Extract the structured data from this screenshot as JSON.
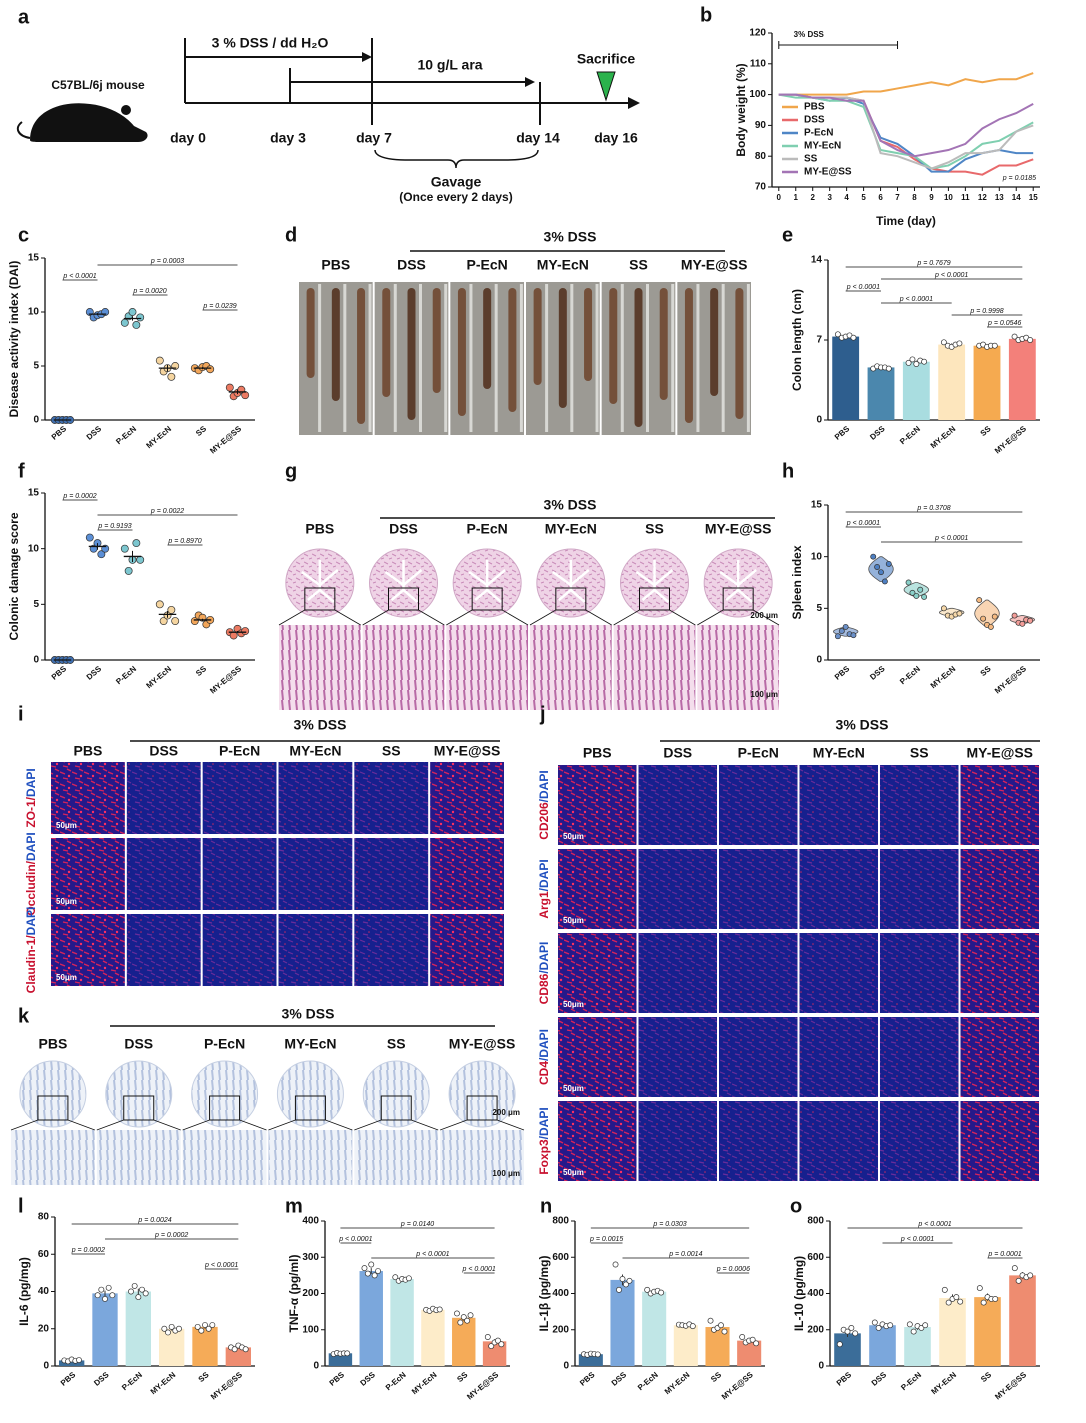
{
  "panel_a": {
    "label": "a",
    "mouse": "C57BL/6j mouse",
    "treatment_1": "3 % DSS / dd H₂O",
    "treatment_2": "10 g/L ara",
    "end": "Sacrifice",
    "days": [
      "day 0",
      "day 3",
      "day 7",
      "day 14",
      "day 16"
    ],
    "gavage": "Gavage",
    "gavage_note": "(Once every 2 days)"
  },
  "chart_data": [
    {
      "panel": "b",
      "type": "line",
      "x": [
        0,
        1,
        2,
        3,
        4,
        5,
        6,
        7,
        8,
        9,
        10,
        11,
        12,
        13,
        14,
        15
      ],
      "xlim": [
        -0.4,
        15.4
      ],
      "xticks": [
        0,
        1,
        2,
        3,
        4,
        5,
        6,
        7,
        8,
        9,
        10,
        11,
        12,
        13,
        14,
        15
      ],
      "ylim": [
        70,
        120
      ],
      "yticks": [
        70,
        80,
        90,
        100,
        110,
        120
      ],
      "xlabel": "Time (day)",
      "ylabel": "Body weight (%)",
      "legend": "lower left",
      "annotations": [
        {
          "text": "3% DSS",
          "x": [
            0,
            7
          ]
        }
      ],
      "stat": "p = 0.0185",
      "series": [
        {
          "name": "PBS",
          "color": "#f0a64b",
          "values": [
            100,
            100,
            100,
            100,
            100,
            101,
            101,
            102,
            103,
            104,
            103,
            105,
            104,
            105,
            105,
            107
          ]
        },
        {
          "name": "DSS",
          "color": "#e8696b",
          "values": [
            100,
            100,
            99,
            99,
            99,
            98,
            85,
            83,
            79,
            76,
            75,
            75,
            74,
            77,
            77,
            79
          ]
        },
        {
          "name": "P-EcN",
          "color": "#4f86c6",
          "values": [
            100,
            100,
            99,
            98,
            99,
            97,
            86,
            84,
            80,
            75,
            75,
            79,
            81,
            82,
            81,
            81
          ]
        },
        {
          "name": "MY-EcN",
          "color": "#7fcfb0",
          "values": [
            100,
            99,
            99,
            98,
            98,
            96,
            82,
            81,
            80,
            76,
            77,
            80,
            84,
            85,
            88,
            91
          ]
        },
        {
          "name": "SS",
          "color": "#bbbbbb",
          "values": [
            100,
            100,
            99,
            99,
            99,
            98,
            81,
            80,
            78,
            76,
            78,
            81,
            81,
            82,
            88,
            90
          ]
        },
        {
          "name": "MY-E@SS",
          "color": "#a374b5",
          "values": [
            100,
            100,
            99,
            99,
            98,
            98,
            85,
            82,
            80,
            81,
            82,
            84,
            89,
            92,
            94,
            97
          ]
        }
      ]
    },
    {
      "panel": "c",
      "type": "dot",
      "ylabel": "Disease activity index (DAI)",
      "categories": [
        "PBS",
        "DSS",
        "P-EcN",
        "MY-EcN",
        "SS",
        "MY-E@SS"
      ],
      "colors": [
        "#3f6fb0",
        "#5b8fd6",
        "#7cc6cf",
        "#f5d5a0",
        "#f2a65a",
        "#ec7a62"
      ],
      "ylim": [
        0,
        15
      ],
      "yticks": [
        0,
        5,
        10,
        15
      ],
      "values": [
        0,
        9.8,
        9.4,
        4.8,
        4.8,
        2.6
      ],
      "errors": [
        0,
        0.1,
        0.2,
        0.3,
        0.1,
        0.2
      ],
      "points": [
        [
          0,
          0,
          0,
          0,
          0
        ],
        [
          10,
          9.5,
          9.7,
          9.8,
          10
        ],
        [
          9,
          9.6,
          10,
          8.8,
          9.5
        ],
        [
          5.5,
          4.5,
          4.8,
          4,
          5
        ],
        [
          4.8,
          4.6,
          4.9,
          5,
          4.7
        ],
        [
          3,
          2.2,
          2.5,
          2.8,
          2.3
        ]
      ],
      "pvalues": [
        {
          "text": "p = 0.0003",
          "between": [
            "DSS",
            "MY-E@SS"
          ]
        },
        {
          "text": "p < 0.0001",
          "between": [
            "PBS",
            "DSS"
          ]
        },
        {
          "text": "p = 0.0020",
          "between": [
            "P-EcN",
            "MY-EcN"
          ]
        },
        {
          "text": "p = 0.0239",
          "between": [
            "SS",
            "MY-E@SS"
          ]
        }
      ]
    },
    {
      "panel": "e",
      "type": "bar",
      "ylabel": "Colon length (cm)",
      "categories": [
        "PBS",
        "DSS",
        "P-EcN",
        "MY-EcN",
        "SS",
        "MY-E@SS"
      ],
      "colors": [
        "#2e5e8e",
        "#4b87ad",
        "#a9dde0",
        "#fde6bd",
        "#f5aa50",
        "#f3807a"
      ],
      "ylim": [
        0,
        14
      ],
      "yticks": [
        0,
        7,
        14
      ],
      "values": [
        7.3,
        4.6,
        5.1,
        6.6,
        6.5,
        7.1
      ],
      "errors": [
        0.1,
        0.05,
        0.1,
        0.1,
        0.05,
        0.1
      ],
      "points": [
        [
          7.5,
          7.2,
          7.3,
          7.4,
          7.2
        ],
        [
          4.5,
          4.7,
          4.6,
          4.6,
          4.5
        ],
        [
          5,
          5.3,
          4.9,
          5.2,
          5.1
        ],
        [
          6.8,
          6.5,
          6.4,
          6.6,
          6.7
        ],
        [
          6.5,
          6.6,
          6.4,
          6.5,
          6.5
        ],
        [
          7.3,
          7,
          7.1,
          7.2,
          7
        ]
      ],
      "pvalues": [
        {
          "text": "p = 0.7679",
          "between": [
            "PBS",
            "MY-E@SS"
          ]
        },
        {
          "text": "p < 0.0001",
          "between": [
            "DSS",
            "MY-E@SS"
          ]
        },
        {
          "text": "p < 0.0001",
          "between": [
            "PBS",
            "DSS"
          ]
        },
        {
          "text": "p < 0.0001",
          "between": [
            "DSS",
            "MY-EcN"
          ]
        },
        {
          "text": "p = 0.9998",
          "between": [
            "MY-EcN",
            "MY-E@SS"
          ]
        },
        {
          "text": "p = 0.0546",
          "between": [
            "SS",
            "MY-E@SS"
          ]
        }
      ]
    },
    {
      "panel": "f",
      "type": "dot",
      "ylabel": "Colonic damage score",
      "categories": [
        "PBS",
        "DSS",
        "P-EcN",
        "MY-EcN",
        "SS",
        "MY-E@SS"
      ],
      "colors": [
        "#3f6fb0",
        "#5b8fd6",
        "#7cc6cf",
        "#f5d5a0",
        "#f2a65a",
        "#ec7a62"
      ],
      "ylim": [
        0,
        15
      ],
      "yticks": [
        0,
        5,
        10,
        15
      ],
      "values": [
        0,
        10.2,
        9.3,
        4.1,
        3.6,
        2.5
      ],
      "errors": [
        0,
        0.3,
        0.5,
        0.3,
        0.1,
        0.1
      ],
      "points": [
        [
          0,
          0,
          0,
          0,
          0
        ],
        [
          11,
          10,
          10.5,
          9.5,
          10
        ],
        [
          10,
          8,
          9,
          10.5,
          9
        ],
        [
          5,
          3.5,
          4,
          4.5,
          3.5
        ],
        [
          3.5,
          4,
          3.8,
          3.2,
          3.6
        ],
        [
          2.5,
          2.2,
          2.8,
          2.4,
          2.6
        ]
      ],
      "pvalues": [
        {
          "text": "p = 0.0002",
          "between": [
            "PBS",
            "DSS"
          ]
        },
        {
          "text": "p = 0.0022",
          "between": [
            "DSS",
            "MY-E@SS"
          ]
        },
        {
          "text": "p = 0.9193",
          "between": [
            "DSS",
            "P-EcN"
          ]
        },
        {
          "text": "p = 0.8970",
          "between": [
            "MY-EcN",
            "SS"
          ]
        }
      ]
    },
    {
      "panel": "h",
      "type": "violin",
      "ylabel": "Spleen index",
      "categories": [
        "PBS",
        "DSS",
        "P-EcN",
        "MY-EcN",
        "SS",
        "MY-E@SS"
      ],
      "colors": [
        "#6b90c9",
        "#4e7fc2",
        "#8ad0c9",
        "#f7d9aa",
        "#f5b980",
        "#f39d98"
      ],
      "ylim": [
        0,
        15
      ],
      "yticks": [
        0,
        5,
        10,
        15
      ],
      "points": [
        [
          2.3,
          2.8,
          3.2,
          2.5,
          2.4
        ],
        [
          10,
          9,
          8.5,
          7.6,
          9.3
        ],
        [
          7.5,
          6.5,
          6.2,
          6.8,
          6.1
        ],
        [
          5,
          4.3,
          4.2,
          4.4,
          4.5
        ],
        [
          5.8,
          4,
          3.4,
          3.2,
          4.2
        ],
        [
          4.3,
          3.6,
          3.5,
          3.9,
          3.8
        ]
      ],
      "pvalues": [
        {
          "text": "p = 0.3708",
          "between": [
            "PBS",
            "MY-E@SS"
          ]
        },
        {
          "text": "p < 0.0001",
          "between": [
            "PBS",
            "DSS"
          ]
        },
        {
          "text": "p < 0.0001",
          "between": [
            "DSS",
            "MY-E@SS"
          ]
        }
      ]
    },
    {
      "panel": "l",
      "type": "bar",
      "ylabel": "IL-6 (pg/mg)",
      "categories": [
        "PBS",
        "DSS",
        "P-EcN",
        "MY-EcN",
        "SS",
        "MY-E@SS"
      ],
      "colors": [
        "#3b6d99",
        "#7ba7dc",
        "#c0e6e6",
        "#fdecc9",
        "#f5ab58",
        "#ee8c70"
      ],
      "ylim": [
        0,
        80
      ],
      "yticks": [
        0,
        20,
        40,
        60,
        80
      ],
      "values": [
        3,
        39,
        40,
        20,
        21,
        10
      ],
      "errors": [
        0.5,
        1.5,
        1.5,
        1,
        1,
        0.7
      ],
      "points": [
        [
          3,
          2.5,
          3.5,
          2.8,
          3.2
        ],
        [
          38,
          41,
          36,
          42,
          38
        ],
        [
          40,
          43,
          37,
          41,
          39
        ],
        [
          20,
          18,
          21,
          19,
          20
        ],
        [
          21,
          19,
          22,
          20,
          22
        ],
        [
          10,
          9,
          11,
          10,
          9
        ]
      ],
      "pvalues": [
        {
          "text": "p = 0.0024",
          "between": [
            "PBS",
            "MY-E@SS"
          ]
        },
        {
          "text": "p = 0.0002",
          "between": [
            "DSS",
            "MY-E@SS"
          ]
        },
        {
          "text": "p = 0.0002",
          "between": [
            "PBS",
            "DSS"
          ]
        },
        {
          "text": "p < 0.0001",
          "between": [
            "SS",
            "MY-E@SS"
          ]
        }
      ]
    },
    {
      "panel": "m",
      "type": "bar",
      "ylabel": "TNF-α (pg/ml)",
      "categories": [
        "PBS",
        "DSS",
        "P-EcN",
        "MY-EcN",
        "SS",
        "MY-E@SS"
      ],
      "colors": [
        "#3b6d99",
        "#7ba7dc",
        "#c0e6e6",
        "#fdecc9",
        "#f5ab58",
        "#ee8c70"
      ],
      "ylim": [
        0,
        400
      ],
      "yticks": [
        0,
        100,
        200,
        300,
        400
      ],
      "values": [
        35,
        262,
        240,
        155,
        133,
        68
      ],
      "errors": [
        2,
        8,
        6,
        3,
        8,
        6
      ],
      "points": [
        [
          33,
          36,
          34,
          35,
          35
        ],
        [
          270,
          255,
          280,
          250,
          262
        ],
        [
          245,
          235,
          240,
          238,
          242
        ],
        [
          155,
          152,
          158,
          154,
          156
        ],
        [
          145,
          120,
          135,
          125,
          140
        ],
        [
          80,
          55,
          65,
          70,
          60
        ]
      ],
      "pvalues": [
        {
          "text": "p = 0.0140",
          "between": [
            "PBS",
            "MY-E@SS"
          ]
        },
        {
          "text": "p < 0.0001",
          "between": [
            "PBS",
            "DSS"
          ]
        },
        {
          "text": "p < 0.0001",
          "between": [
            "DSS",
            "MY-E@SS"
          ]
        },
        {
          "text": "p < 0.0001",
          "between": [
            "SS",
            "MY-E@SS"
          ]
        }
      ]
    },
    {
      "panel": "n",
      "type": "bar",
      "ylabel": "IL-1β (pg/mg)",
      "categories": [
        "PBS",
        "DSS",
        "P-EcN",
        "MY-EcN",
        "SS",
        "MY-E@SS"
      ],
      "colors": [
        "#3b6d99",
        "#7ba7dc",
        "#c0e6e6",
        "#fdecc9",
        "#f5ab58",
        "#ee8c70"
      ],
      "ylim": [
        0,
        800
      ],
      "yticks": [
        0,
        200,
        400,
        600,
        800
      ],
      "values": [
        65,
        475,
        410,
        225,
        215,
        140
      ],
      "errors": [
        3,
        30,
        10,
        5,
        12,
        8
      ],
      "points": [
        [
          65,
          62,
          68,
          66,
          64
        ],
        [
          560,
          420,
          480,
          450,
          470
        ],
        [
          420,
          400,
          410,
          415,
          405
        ],
        [
          228,
          225,
          222,
          230,
          220
        ],
        [
          250,
          200,
          210,
          225,
          190
        ],
        [
          160,
          130,
          140,
          145,
          125
        ]
      ],
      "pvalues": [
        {
          "text": "p = 0.0303",
          "between": [
            "PBS",
            "MY-E@SS"
          ]
        },
        {
          "text": "p = 0.0015",
          "between": [
            "PBS",
            "DSS"
          ]
        },
        {
          "text": "p = 0.0014",
          "between": [
            "DSS",
            "MY-E@SS"
          ]
        },
        {
          "text": "p = 0.0006",
          "between": [
            "SS",
            "MY-E@SS"
          ]
        }
      ]
    },
    {
      "panel": "o",
      "type": "bar",
      "ylabel": "IL-10 (pg/mg)",
      "categories": [
        "PBS",
        "DSS",
        "P-EcN",
        "MY-EcN",
        "SS",
        "MY-E@SS"
      ],
      "colors": [
        "#3b6d99",
        "#7ba7dc",
        "#c0e6e6",
        "#fdecc9",
        "#f5ab58",
        "#ee8c70"
      ],
      "ylim": [
        0,
        800
      ],
      "yticks": [
        0,
        200,
        400,
        600,
        800
      ],
      "values": [
        180,
        225,
        215,
        375,
        380,
        500
      ],
      "errors": [
        20,
        12,
        15,
        20,
        20,
        18
      ],
      "points": [
        [
          120,
          200,
          190,
          210,
          180
        ],
        [
          240,
          210,
          230,
          220,
          225
        ],
        [
          230,
          190,
          220,
          210,
          225
        ],
        [
          420,
          350,
          370,
          380,
          355
        ],
        [
          430,
          350,
          380,
          370,
          370
        ],
        [
          540,
          470,
          500,
          490,
          500
        ]
      ],
      "pvalues": [
        {
          "text": "p < 0.0001",
          "between": [
            "PBS",
            "MY-E@SS"
          ]
        },
        {
          "text": "p < 0.0001",
          "between": [
            "DSS",
            "MY-EcN"
          ]
        },
        {
          "text": "p = 0.0001",
          "between": [
            "SS",
            "MY-E@SS"
          ]
        }
      ]
    }
  ],
  "panel_d": {
    "label": "d",
    "header": "3% DSS",
    "groups": [
      "PBS",
      "DSS",
      "P-EcN",
      "MY-EcN",
      "SS",
      "MY-E@SS"
    ]
  },
  "panel_g": {
    "label": "g",
    "header": "3% DSS",
    "groups": [
      "PBS",
      "DSS",
      "P-EcN",
      "MY-EcN",
      "SS",
      "MY-E@SS"
    ],
    "scale_top": "200 μm",
    "scale_bottom": "100 μm"
  },
  "panel_i": {
    "label": "i",
    "header": "3% DSS",
    "groups": [
      "PBS",
      "DSS",
      "P-EcN",
      "MY-EcN",
      "SS",
      "MY-E@SS"
    ],
    "rows": [
      "ZO-1/",
      "Occludin/",
      "Claudin-1/"
    ],
    "counterstain": "DAPI",
    "scale": "50μm"
  },
  "panel_j": {
    "label": "j",
    "header": "3% DSS",
    "groups": [
      "PBS",
      "DSS",
      "P-EcN",
      "MY-EcN",
      "SS",
      "MY-E@SS"
    ],
    "rows": [
      "CD206",
      "Arg1",
      "CD86",
      "CD4",
      "Foxp3"
    ],
    "counterstain": "/DAPI",
    "scale": "50μm"
  },
  "panel_k": {
    "label": "k",
    "header": "3% DSS",
    "groups": [
      "PBS",
      "DSS",
      "P-EcN",
      "MY-EcN",
      "SS",
      "MY-E@SS"
    ],
    "scale_top": "200 μm",
    "scale_bottom": "100 μm"
  }
}
